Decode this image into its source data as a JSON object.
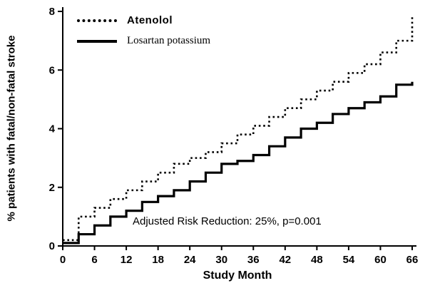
{
  "chart_data": {
    "type": "line",
    "title": "",
    "xlabel": "Study Month",
    "ylabel": "% patients with fatal/non-fatal stroke",
    "xlim": [
      0,
      66
    ],
    "ylim": [
      0,
      8
    ],
    "xticks": [
      0,
      6,
      12,
      18,
      24,
      30,
      36,
      42,
      48,
      54,
      60,
      66
    ],
    "yticks": [
      0,
      2,
      4,
      6,
      8
    ],
    "grid": false,
    "legend_position": "top-left-inside",
    "annotation": "Adjusted Risk Reduction: 25%, p=0.001",
    "line_color": "#000000",
    "x": [
      0,
      3,
      6,
      9,
      12,
      15,
      18,
      21,
      24,
      27,
      30,
      33,
      36,
      39,
      42,
      45,
      48,
      51,
      54,
      57,
      60,
      63,
      66
    ],
    "series": [
      {
        "name": "Atenolol",
        "style": "dotted",
        "color": "#000000",
        "values": [
          0.2,
          1.0,
          1.3,
          1.6,
          1.9,
          2.2,
          2.5,
          2.8,
          3.0,
          3.2,
          3.5,
          3.8,
          4.1,
          4.4,
          4.7,
          5.0,
          5.3,
          5.6,
          5.9,
          6.2,
          6.6,
          7.0,
          7.8
        ]
      },
      {
        "name": "Losartan potassium",
        "style": "solid",
        "color": "#000000",
        "values": [
          0.1,
          0.4,
          0.7,
          1.0,
          1.2,
          1.5,
          1.7,
          1.9,
          2.2,
          2.5,
          2.8,
          2.9,
          3.1,
          3.4,
          3.7,
          4.0,
          4.2,
          4.5,
          4.7,
          4.9,
          5.1,
          5.5,
          5.6
        ]
      }
    ]
  }
}
